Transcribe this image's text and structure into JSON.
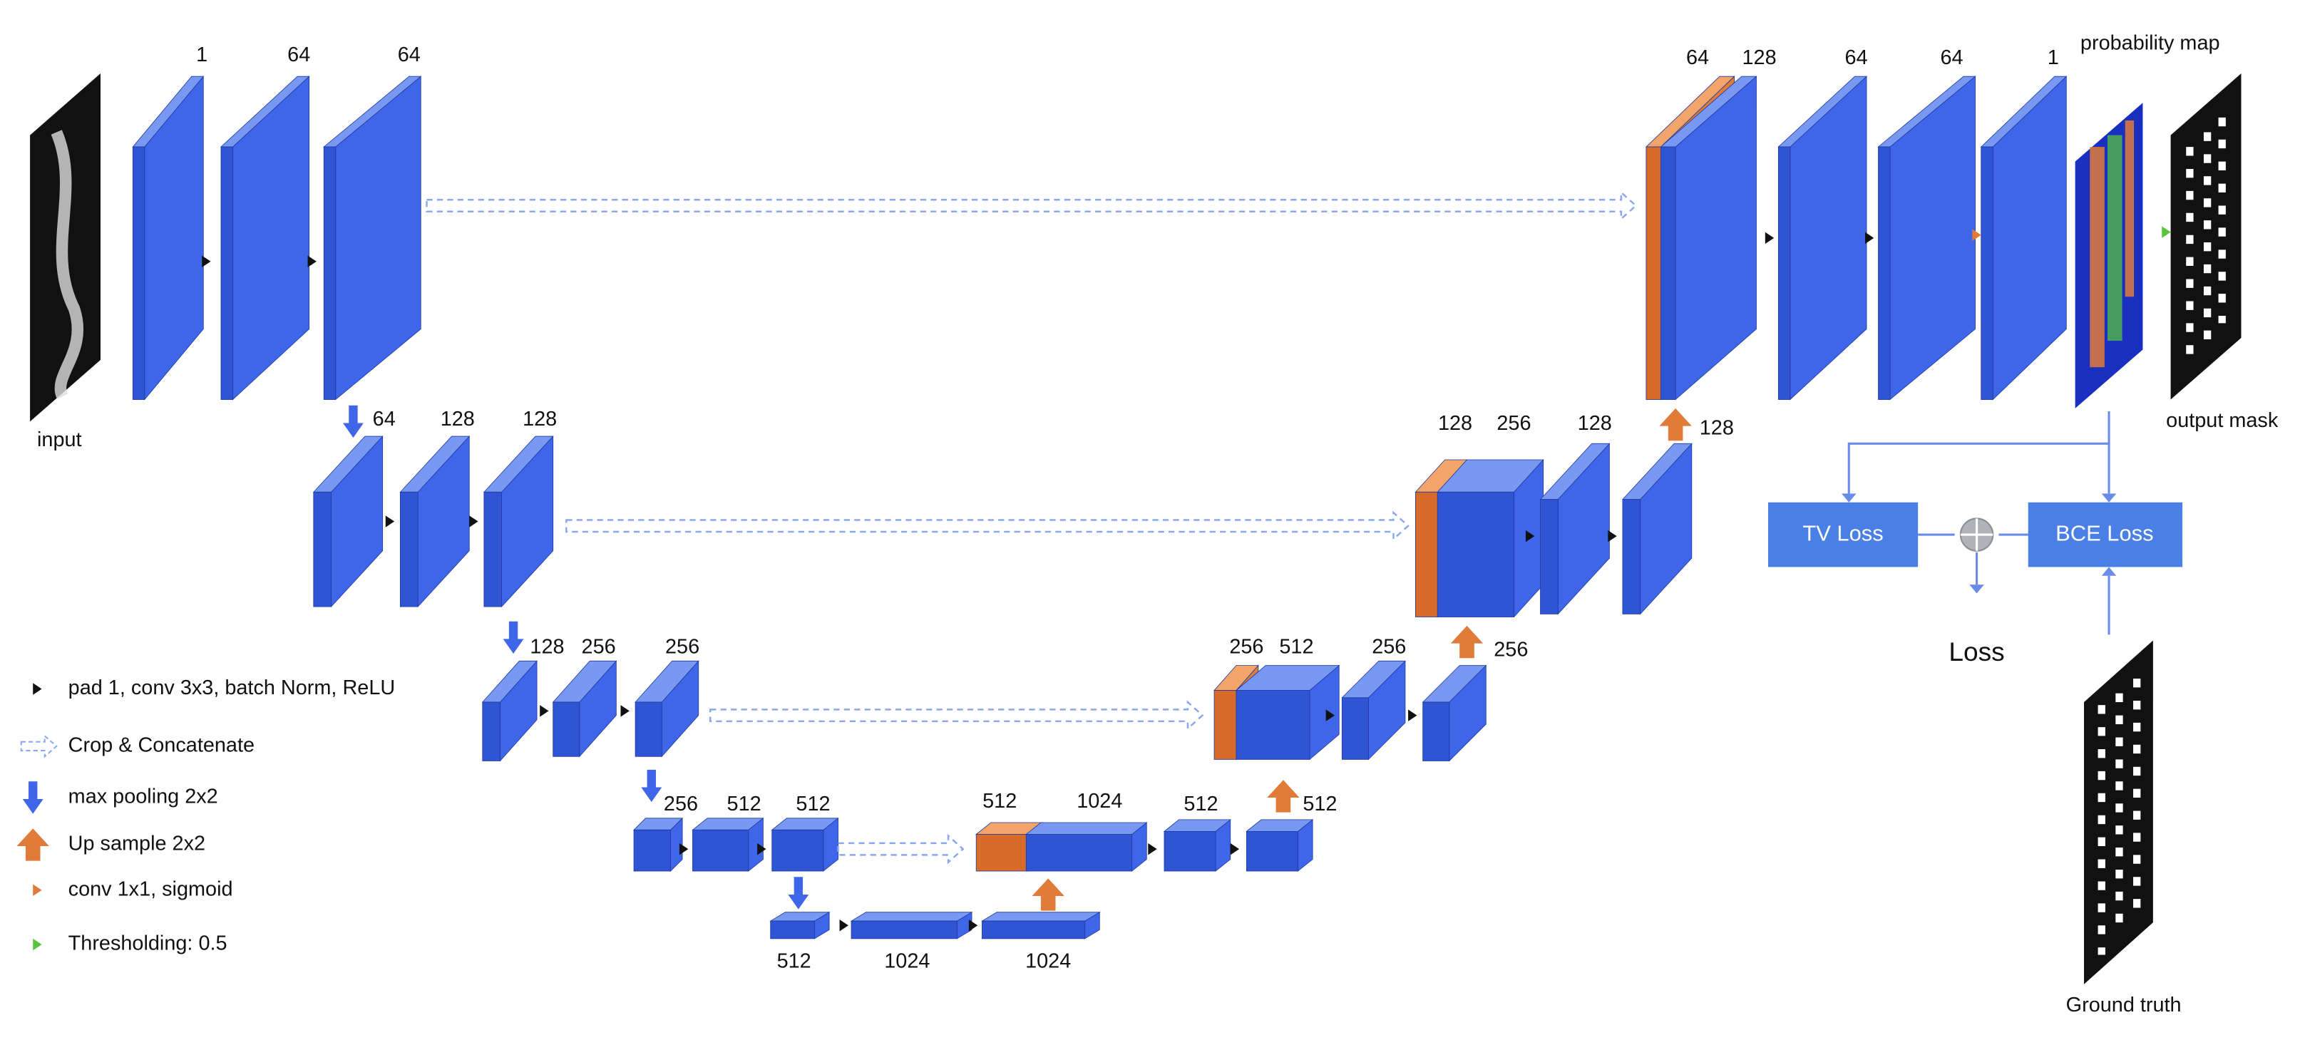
{
  "labels": {
    "input": "input",
    "probability_map": "probability map",
    "output_mask": "output mask",
    "ground_truth": "Ground truth",
    "loss": "Loss"
  },
  "boxes": {
    "tv_loss": "TV Loss",
    "bce_loss": "BCE Loss"
  },
  "channels": [
    "1",
    "64",
    "64",
    "64",
    "128",
    "128",
    "128",
    "256",
    "256",
    "256",
    "512",
    "512",
    "512",
    "1024",
    "1024",
    "512",
    "1024",
    "512",
    "512",
    "256",
    "512",
    "256",
    "256",
    "128",
    "256",
    "128",
    "128",
    "64",
    "128",
    "64",
    "64",
    "1"
  ],
  "legend": [
    "pad 1, conv 3x3, batch Norm, ReLU",
    "Crop & Concatenate",
    "max pooling 2x2",
    "Up sample 2x2",
    "conv 1x1, sigmoid",
    "Thresholding: 0.5"
  ]
}
